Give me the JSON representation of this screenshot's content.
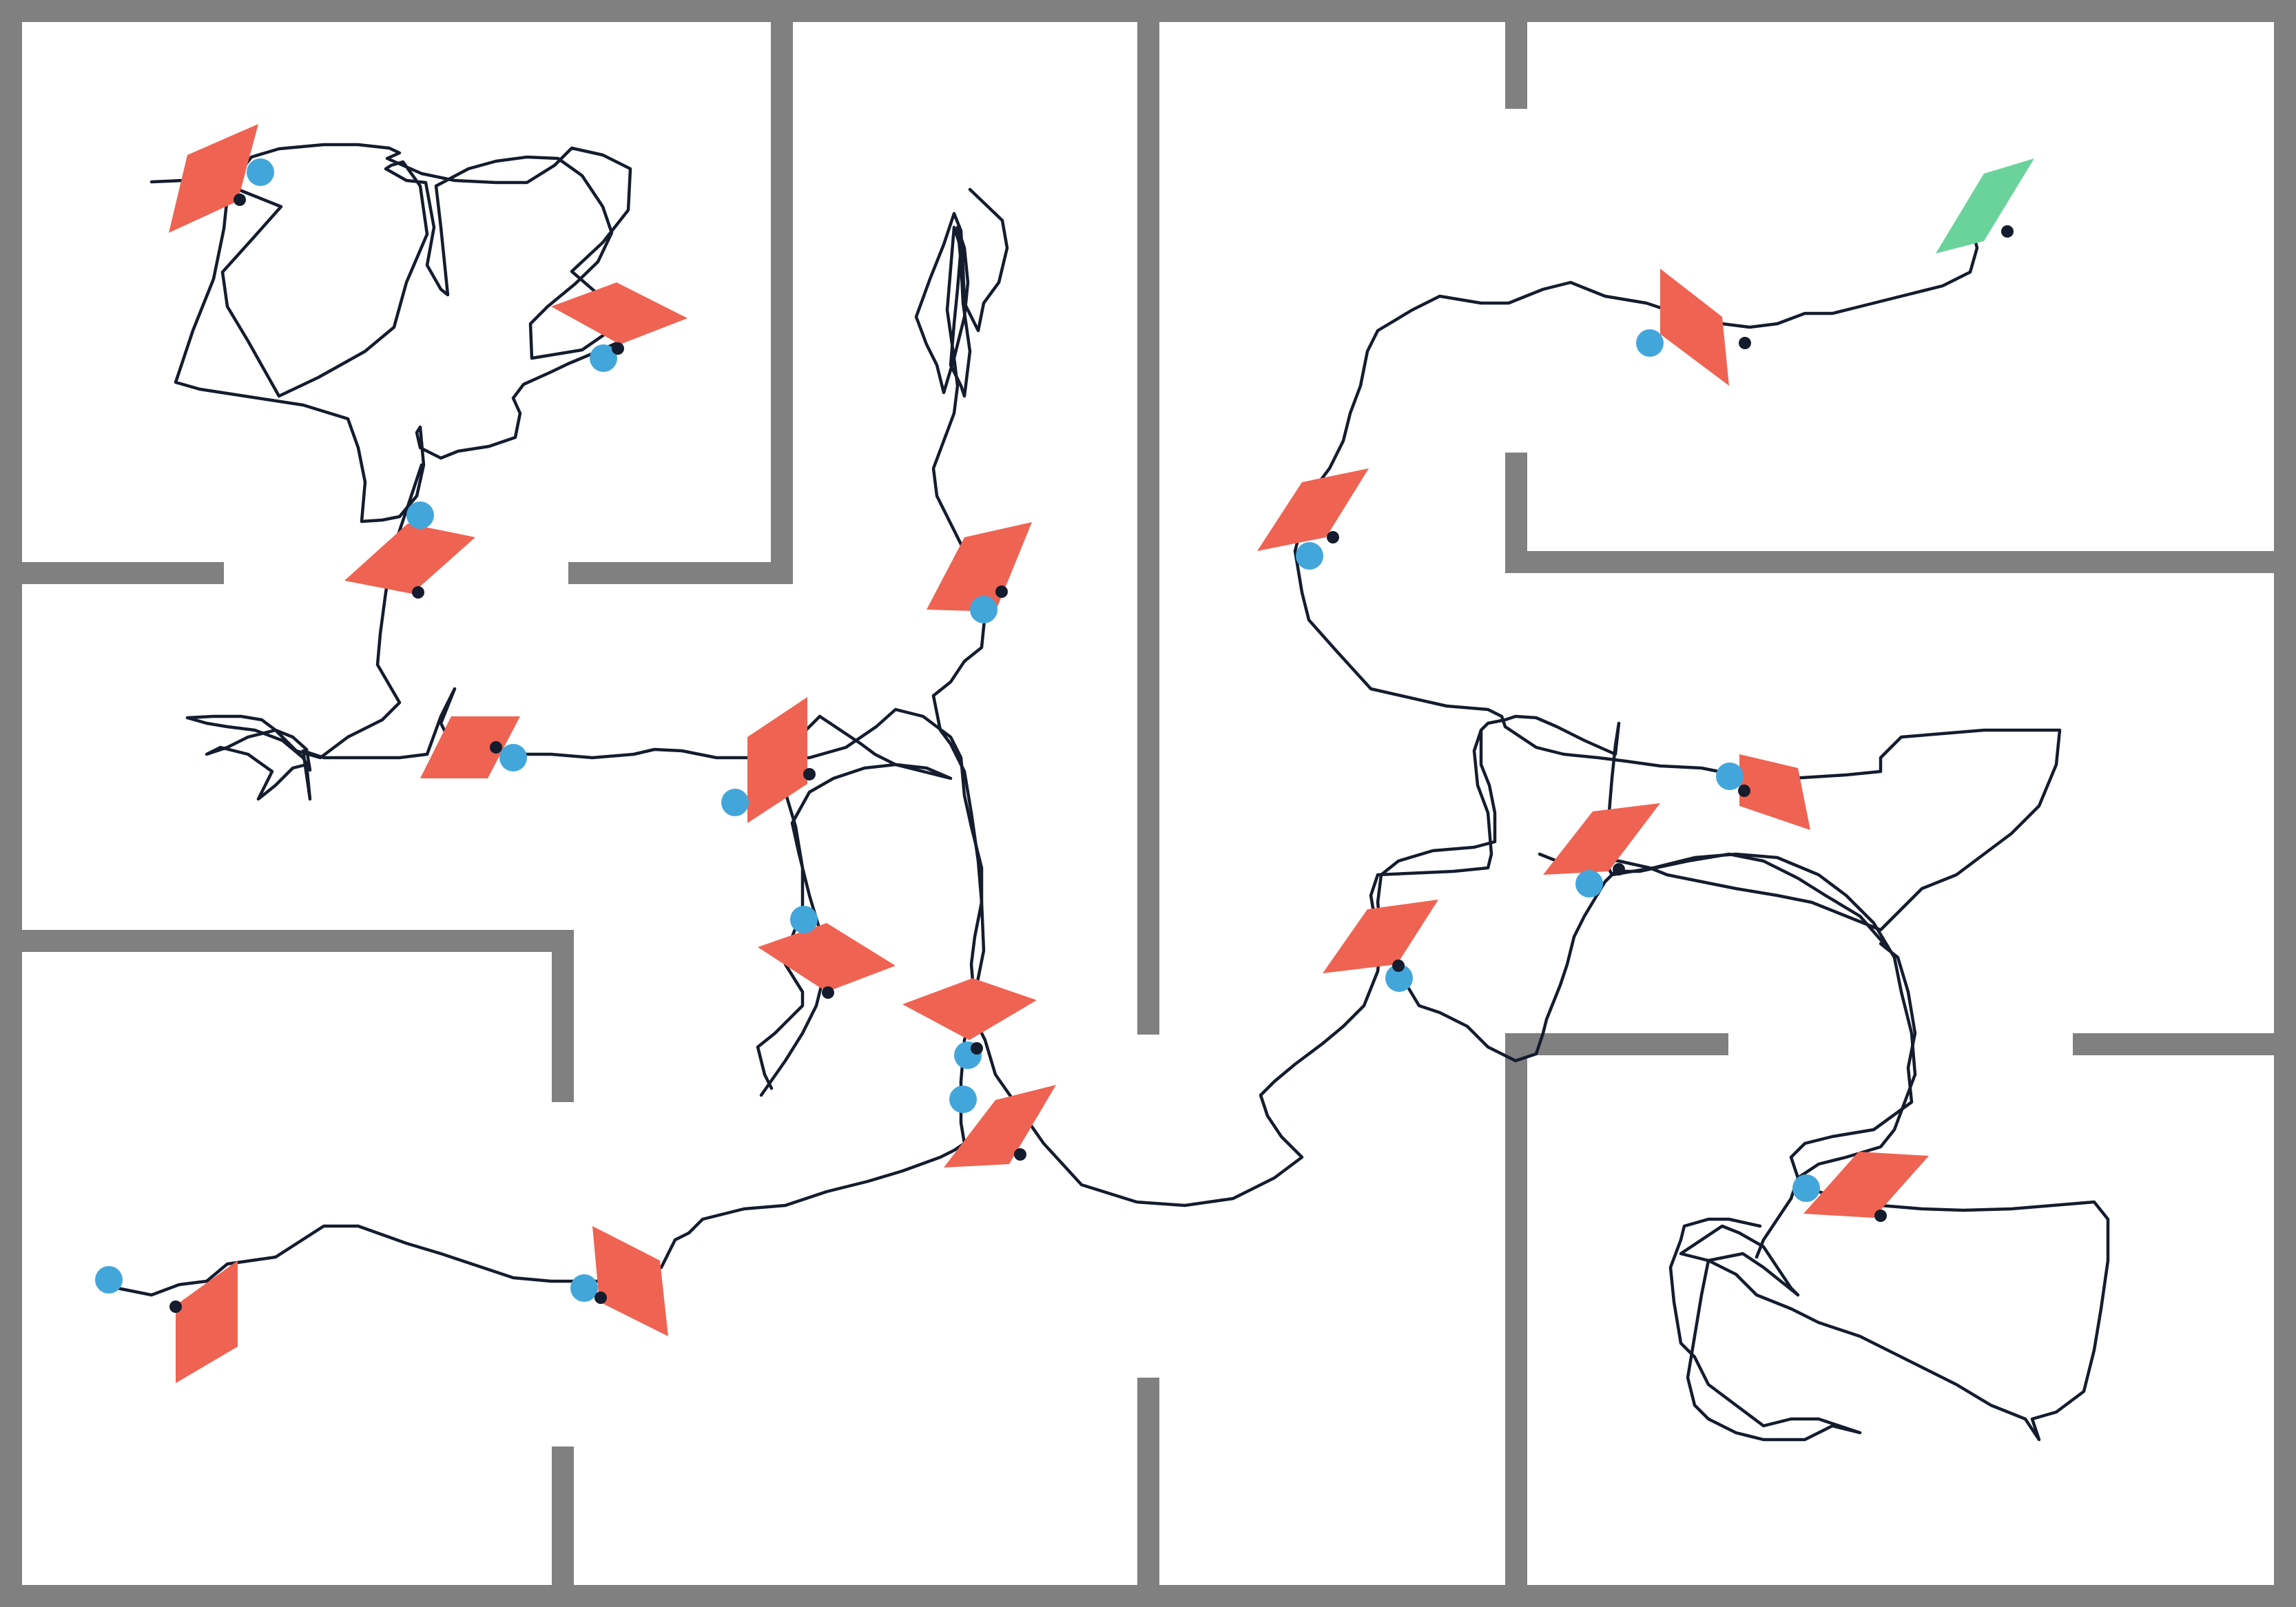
{
  "colors": {
    "background": "#ffffff",
    "wall": "#808080",
    "path": "#141c2e",
    "waypoint_marker": "#ef6352",
    "goal_marker": "#6ad39b",
    "sensor_dot": "#43a6da",
    "anchor_dot": "#141c2e"
  },
  "markers": [
    {
      "kind": "waypoint",
      "shape": "parallelogram-left"
    },
    {
      "kind": "waypoint",
      "shape": "parallelogram-left"
    },
    {
      "kind": "waypoint",
      "shape": "parallelogram-left"
    },
    {
      "kind": "waypoint",
      "shape": "parallelogram-left"
    },
    {
      "kind": "waypoint",
      "shape": "parallelogram-left"
    },
    {
      "kind": "waypoint",
      "shape": "parallelogram-left"
    },
    {
      "kind": "waypoint",
      "shape": "parallelogram-left"
    },
    {
      "kind": "waypoint",
      "shape": "parallelogram-left"
    },
    {
      "kind": "waypoint",
      "shape": "parallelogram-left"
    },
    {
      "kind": "waypoint",
      "shape": "parallelogram-left"
    },
    {
      "kind": "waypoint",
      "shape": "parallelogram-left"
    },
    {
      "kind": "waypoint",
      "shape": "parallelogram-left"
    },
    {
      "kind": "waypoint",
      "shape": "parallelogram-left"
    },
    {
      "kind": "waypoint",
      "shape": "parallelogram-left"
    },
    {
      "kind": "waypoint",
      "shape": "parallelogram-left"
    },
    {
      "kind": "waypoint",
      "shape": "parallelogram-left"
    },
    {
      "kind": "waypoint",
      "shape": "parallelogram-left"
    },
    {
      "kind": "waypoint",
      "shape": "parallelogram-left"
    },
    {
      "kind": "goal",
      "shape": "parallelogram-left"
    }
  ]
}
